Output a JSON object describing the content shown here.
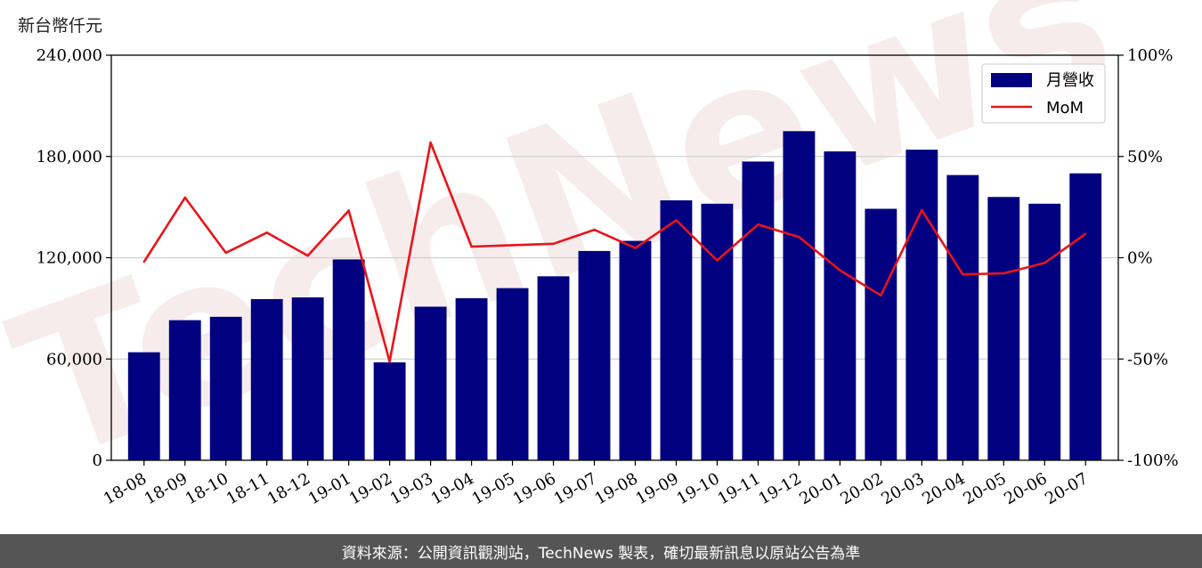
{
  "unit_label": "新台幣仟元",
  "footer_text": "資料來源：公開資訊觀測站，TechNews 製表，確切最新訊息以原站公告為準",
  "watermark_text": "TechNews",
  "colors": {
    "bar": "#000080",
    "line": "#e8141b",
    "grid": "#d0d0d0",
    "footer_bg": "#555555"
  },
  "chart_data": {
    "type": "bar",
    "categories": [
      "18-08",
      "18-09",
      "18-10",
      "18-11",
      "18-12",
      "19-01",
      "19-02",
      "19-03",
      "19-04",
      "19-05",
      "19-06",
      "19-07",
      "19-08",
      "19-09",
      "19-10",
      "19-11",
      "19-12",
      "20-01",
      "20-02",
      "20-03",
      "20-04",
      "20-05",
      "20-06",
      "20-07"
    ],
    "series": [
      {
        "name": "月營收",
        "type": "bar",
        "axis": "left",
        "values": [
          64000,
          83000,
          85000,
          95500,
          96500,
          119000,
          58000,
          91000,
          96000,
          102000,
          109000,
          124000,
          130000,
          154000,
          152000,
          177000,
          195000,
          183000,
          149000,
          184000,
          169000,
          156000,
          152000,
          170000
        ]
      },
      {
        "name": "MoM",
        "type": "line",
        "axis": "right",
        "values": [
          -2,
          29.7,
          2.4,
          12.4,
          1.0,
          23.3,
          -51.3,
          56.9,
          5.5,
          6.2,
          6.9,
          13.8,
          4.8,
          18.5,
          -1.3,
          16.4,
          10.2,
          -6.2,
          -18.6,
          23.5,
          -8.2,
          -7.7,
          -2.6,
          11.8
        ]
      }
    ],
    "y_left": {
      "ylim": [
        0,
        240000
      ],
      "ticks": [
        0,
        60000,
        120000,
        180000,
        240000
      ],
      "tick_labels": [
        "0",
        "60,000",
        "120,000",
        "180,000",
        "240,000"
      ]
    },
    "y_right": {
      "ylim": [
        -100,
        100
      ],
      "ticks": [
        -100,
        -50,
        0,
        50,
        100
      ],
      "tick_labels": [
        "-100%",
        "-50%",
        "0%",
        "50%",
        "100%"
      ]
    },
    "grid": true,
    "legend": "top-right"
  }
}
